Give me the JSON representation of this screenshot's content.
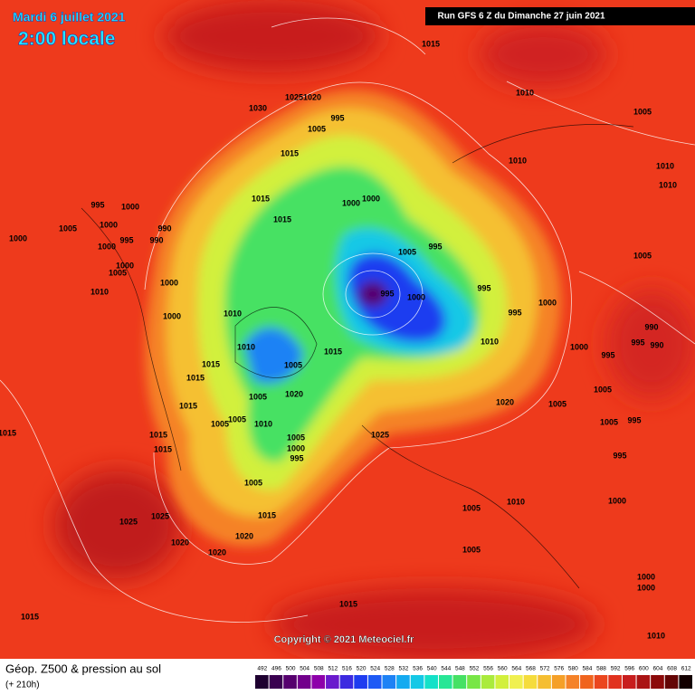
{
  "header": {
    "date": "Mardi 6 juillet 2021",
    "time": "2:00 locale",
    "run": "Run GFS 6 Z du Dimanche 27 juin 2021"
  },
  "copyright": "Copyright © 2021 Meteociel.fr",
  "footer": {
    "title": "Géop. Z500 & pression au sol",
    "lead": "(+ 210h)"
  },
  "scale": {
    "values": [
      492,
      496,
      500,
      504,
      508,
      512,
      516,
      520,
      524,
      528,
      532,
      536,
      540,
      544,
      548,
      552,
      556,
      560,
      564,
      568,
      572,
      576,
      580,
      584,
      588,
      592,
      596,
      600,
      604,
      608,
      612
    ],
    "colors": [
      "#1e0030",
      "#3a0050",
      "#56006e",
      "#72008c",
      "#8e00aa",
      "#6a1acd",
      "#3c2ae0",
      "#1e3cf0",
      "#1e5af5",
      "#1e82f5",
      "#14aaf0",
      "#14c8e6",
      "#14e1c8",
      "#28e696",
      "#46e164",
      "#78e646",
      "#aaeb3c",
      "#d2f03c",
      "#f0f050",
      "#f5dc3c",
      "#f5be32",
      "#f5a028",
      "#f58228",
      "#f0641e",
      "#eb461e",
      "#e1321e",
      "#c81e1e",
      "#aa1414",
      "#8c0a0a",
      "#640505",
      "#140000"
    ]
  },
  "isobars": [
    1015,
    1030,
    1025,
    1020,
    995,
    1005,
    1010,
    1005,
    1010,
    1010,
    1010,
    1015,
    1015,
    1015,
    1000,
    1000,
    995,
    1000,
    1005,
    1000,
    995,
    990,
    990,
    1000,
    1000,
    1005,
    1000,
    1010,
    1000,
    1000,
    1005,
    995,
    995,
    1000,
    995,
    1000,
    995,
    1005,
    1010,
    1010,
    1015,
    1015,
    1015,
    1005,
    1015,
    1010,
    1000,
    995,
    990,
    995,
    990,
    1005,
    1020,
    1005,
    1010,
    1005,
    1005,
    1005,
    1020,
    1005,
    995,
    1015,
    1015,
    1025,
    1005,
    1000,
    995,
    1015,
    995,
    1005,
    1010,
    1000,
    1005,
    1025,
    1025,
    1015,
    1020,
    1020,
    1020,
    1005,
    1000,
    1000,
    1015,
    1015,
    1010
  ]
}
